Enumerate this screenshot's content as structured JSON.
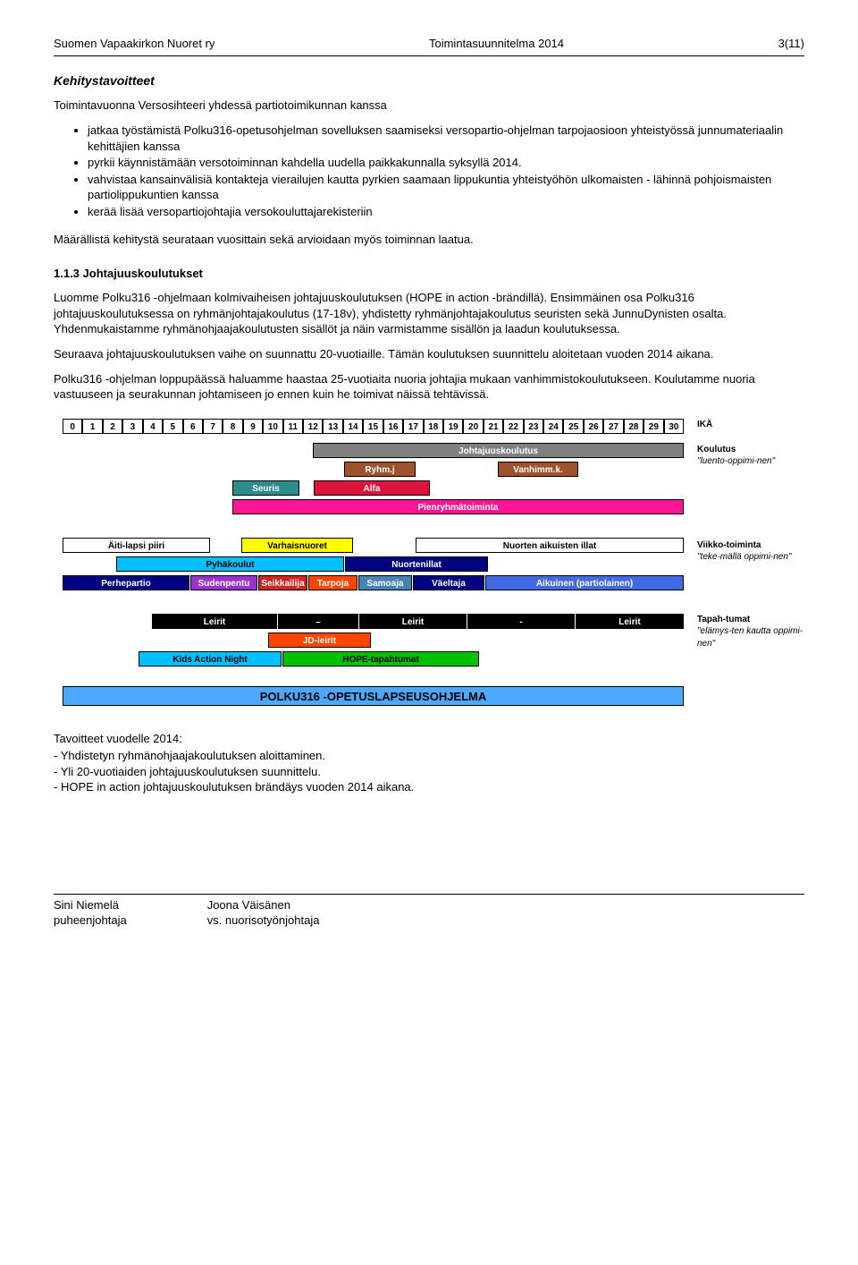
{
  "header": {
    "left": "Suomen Vapaakirkon Nuoret ry",
    "center": "Toimintasuunnitelma 2014",
    "right": "3(11)"
  },
  "h_kehitys": "Kehitystavoitteet",
  "intro": "Toimintavuonna Versosihteeri yhdessä partiotoimikunnan kanssa",
  "bullets1": [
    "jatkaa työstämistä Polku316-opetusohjelman sovelluksen saamiseksi versopartio-ohjelman tarpojaosioon yhteistyössä junnumateriaalin kehittäjien kanssa",
    "pyrkii käynnistämään versotoiminnan kahdella uudella paikkakunnalla syksyllä 2014.",
    "vahvistaa kansainvälisiä kontakteja vierailujen kautta pyrkien saamaan lippukuntia yhteistyöhön ulkomaisten - lähinnä pohjoismaisten partiolippukuntien kanssa",
    "kerää lisää versopartiojohtajia versokouluttajarekisteriin"
  ],
  "maarallista": "Määrällistä kehitystä seurataan vuosittain sekä arvioidaan myös toiminnan laatua.",
  "sec113": "1.1.3 Johtajuuskoulutukset",
  "p1": "Luomme Polku316 -ohjelmaan kolmivaiheisen johtajuuskoulutuksen (HOPE in action -brändillä). Ensimmäinen osa Polku316 johtajuuskoulutuksessa on ryhmänjohtajakoulutus (17-18v), yhdistetty ryhmänjohtajakoulutus seuristen sekä JunnuDynisten osalta. Yhdenmukaistamme ryhmänohjaajakoulutusten sisällöt ja näin varmistamme sisällön ja laadun koulutuksessa.",
  "p2": "Seuraava johtajuuskoulutuksen vaihe on suunnattu 20-vuotiaille. Tämän koulutuksen suunnittelu aloitetaan vuoden 2014 aikana.",
  "p3": "Polku316 -ohjelman loppupäässä haluamme haastaa 25-vuotiaita nuoria johtajia mukaan vanhimmistokoulutukseen. Koulutamme nuoria vastuuseen ja seurakunnan johtamiseen jo ennen kuin he toimivat näissä tehtävissä.",
  "tavoitteet_h": "Tavoitteet vuodelle 2014:",
  "tavoitteet": [
    "- Yhdistetyn ryhmänohjaajakoulutuksen aloittaminen.",
    "- Yli 20-vuotiaiden johtajuuskoulutuksen suunnittelu.",
    "- HOPE in action johtajuuskoulutuksen brändäys vuoden 2014 aikana."
  ],
  "footer": {
    "left1": "Sini Niemelä",
    "left2": "puheenjohtaja",
    "right1": "Joona Väisänen",
    "right2": "vs. nuorisotyönjohtaja"
  },
  "diagram": {
    "age_start": 0,
    "age_end": 30,
    "age_label": "IKÄ",
    "labels_right": {
      "koulutus": {
        "hd": "Koulutus",
        "it": "\"luento-oppimi-nen\""
      },
      "viikko": {
        "hd": "Viikko-toiminta",
        "it": "\"teke-mällä oppimi-nen\""
      },
      "tapah": {
        "hd": "Tapah-tumat",
        "it": "\"elämys-ten kautta oppimi-nen\""
      }
    },
    "block_koulutus": {
      "johtajuus": "Johtajuuskoulutus",
      "ryhmj": "Ryhm.j",
      "vanhimmk": "Vanhimm.k.",
      "seuris": "Seuris",
      "alfa": "Alfa",
      "pienryhma": "Pienryhmätoiminta"
    },
    "block_viikko": {
      "aitilapsi": "Äiti-lapsi piiri",
      "varhais": "Varhaisnuoret",
      "nuortenillat": "Nuorten aikuisten illat",
      "pyha": "Pyhäkoulut",
      "nuortenillat2": "Nuortenillat",
      "perhep": "Perhepartio",
      "sudenpentu": "Sudenpentu",
      "seikkailija": "Seikkailija",
      "tarpoja": "Tarpoja",
      "samoaja": "Samoaja",
      "vaeltaja": "Väeltaja",
      "aikuinen": "Aikuinen (partiolainen)"
    },
    "block_tapah": {
      "leirit": "Leirit",
      "dash": "–",
      "jd": "JD-leirit",
      "kan": "Kids Action Night",
      "hope": "HOPE-tapahtumat"
    },
    "polku": "POLKU316 -OPETUSLAPSEUSOHJELMA"
  }
}
